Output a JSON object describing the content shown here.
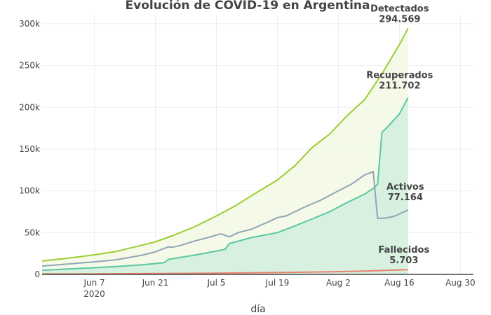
{
  "chart_data": {
    "type": "area",
    "title": "Evolución de COVID-19 en Argentina",
    "xlabel": "día",
    "ylabel": "",
    "x_range": [
      "2020-05-26",
      "2020-09-02"
    ],
    "ylim": [
      0,
      310000
    ],
    "x_ticks": [
      {
        "date": "2020-06-07",
        "label": "Jun 7",
        "sublabel": "2020"
      },
      {
        "date": "2020-06-21",
        "label": "Jun 21",
        "sublabel": ""
      },
      {
        "date": "2020-07-05",
        "label": "Jul 5",
        "sublabel": ""
      },
      {
        "date": "2020-07-19",
        "label": "Jul 19",
        "sublabel": ""
      },
      {
        "date": "2020-08-02",
        "label": "Aug 2",
        "sublabel": ""
      },
      {
        "date": "2020-08-16",
        "label": "Aug 16",
        "sublabel": ""
      },
      {
        "date": "2020-08-30",
        "label": "Aug 30",
        "sublabel": ""
      }
    ],
    "y_ticks": [
      {
        "value": 0,
        "label": "0"
      },
      {
        "value": 50000,
        "label": "50k"
      },
      {
        "value": 100000,
        "label": "100k"
      },
      {
        "value": 150000,
        "label": "150k"
      },
      {
        "value": 200000,
        "label": "200k"
      },
      {
        "value": 250000,
        "label": "250k"
      },
      {
        "value": 300000,
        "label": "300k"
      }
    ],
    "grid": true,
    "series": [
      {
        "name": "Detectados",
        "color": "#9acd32",
        "fill": "#f4fae6",
        "final_label": "294.569",
        "points": [
          [
            "2020-05-26",
            16000
          ],
          [
            "2020-06-01",
            19500
          ],
          [
            "2020-06-07",
            23500
          ],
          [
            "2020-06-12",
            27500
          ],
          [
            "2020-06-18",
            35000
          ],
          [
            "2020-06-21",
            39000
          ],
          [
            "2020-06-25",
            46500
          ],
          [
            "2020-06-30",
            57000
          ],
          [
            "2020-07-05",
            70000
          ],
          [
            "2020-07-09",
            81000
          ],
          [
            "2020-07-13",
            94000
          ],
          [
            "2020-07-19",
            113000
          ],
          [
            "2020-07-23",
            130000
          ],
          [
            "2020-07-27",
            152000
          ],
          [
            "2020-07-31",
            168000
          ],
          [
            "2020-08-04",
            190000
          ],
          [
            "2020-08-08",
            209000
          ],
          [
            "2020-08-12",
            240000
          ],
          [
            "2020-08-16",
            275000
          ],
          [
            "2020-08-18",
            294569
          ]
        ]
      },
      {
        "name": "Recuperados",
        "color": "#5ac8a0",
        "fill": "#d4eedf",
        "final_label": "211.702",
        "points": [
          [
            "2020-05-26",
            5000
          ],
          [
            "2020-06-01",
            6500
          ],
          [
            "2020-06-07",
            8000
          ],
          [
            "2020-06-12",
            9500
          ],
          [
            "2020-06-18",
            11500
          ],
          [
            "2020-06-21",
            13000
          ],
          [
            "2020-06-23",
            14000
          ],
          [
            "2020-06-24",
            18000
          ],
          [
            "2020-06-30",
            23000
          ],
          [
            "2020-07-05",
            28000
          ],
          [
            "2020-07-07",
            30000
          ],
          [
            "2020-07-08",
            37000
          ],
          [
            "2020-07-13",
            44000
          ],
          [
            "2020-07-19",
            50000
          ],
          [
            "2020-07-23",
            58000
          ],
          [
            "2020-07-31",
            75000
          ],
          [
            "2020-08-04",
            86000
          ],
          [
            "2020-08-08",
            96000
          ],
          [
            "2020-08-10",
            103000
          ],
          [
            "2020-08-11",
            108000
          ],
          [
            "2020-08-12",
            170000
          ],
          [
            "2020-08-13",
            175000
          ],
          [
            "2020-08-16",
            192000
          ],
          [
            "2020-08-18",
            211702
          ]
        ]
      },
      {
        "name": "Activos",
        "color": "#8fa6b4",
        "fill": "none",
        "final_label": "77.164",
        "points": [
          [
            "2020-05-26",
            10000
          ],
          [
            "2020-06-01",
            12500
          ],
          [
            "2020-06-07",
            15000
          ],
          [
            "2020-06-12",
            17500
          ],
          [
            "2020-06-18",
            23000
          ],
          [
            "2020-06-21",
            27000
          ],
          [
            "2020-06-24",
            33000
          ],
          [
            "2020-06-25",
            32500
          ],
          [
            "2020-06-27",
            35000
          ],
          [
            "2020-06-30",
            40000
          ],
          [
            "2020-07-03",
            44000
          ],
          [
            "2020-07-06",
            48500
          ],
          [
            "2020-07-08",
            45000
          ],
          [
            "2020-07-10",
            50000
          ],
          [
            "2020-07-13",
            54000
          ],
          [
            "2020-07-17",
            63000
          ],
          [
            "2020-07-19",
            68000
          ],
          [
            "2020-07-21",
            70000
          ],
          [
            "2020-07-25",
            80000
          ],
          [
            "2020-07-29",
            89000
          ],
          [
            "2020-08-02",
            100000
          ],
          [
            "2020-08-05",
            108000
          ],
          [
            "2020-08-08",
            119000
          ],
          [
            "2020-08-10",
            123000
          ],
          [
            "2020-08-11",
            67000
          ],
          [
            "2020-08-13",
            67500
          ],
          [
            "2020-08-15",
            70000
          ],
          [
            "2020-08-18",
            77164
          ]
        ]
      },
      {
        "name": "Fallecidos",
        "color": "#e8826e",
        "fill": "none",
        "final_label": "5.703",
        "points": [
          [
            "2020-05-26",
            500
          ],
          [
            "2020-06-07",
            700
          ],
          [
            "2020-06-21",
            1000
          ],
          [
            "2020-07-05",
            1500
          ],
          [
            "2020-07-19",
            2200
          ],
          [
            "2020-08-02",
            3300
          ],
          [
            "2020-08-10",
            4300
          ],
          [
            "2020-08-18",
            5703
          ]
        ]
      }
    ]
  }
}
